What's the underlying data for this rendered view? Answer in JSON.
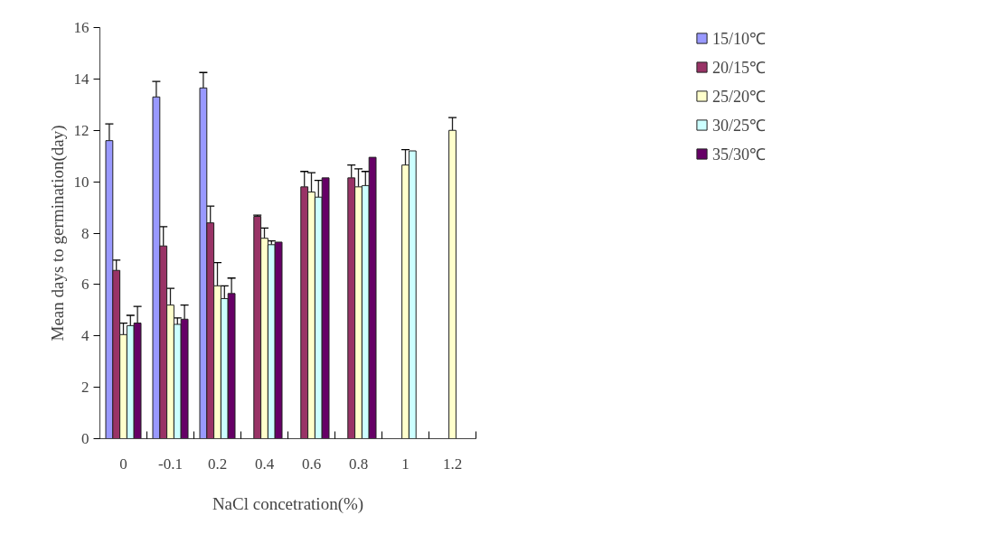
{
  "chart_data": {
    "type": "bar",
    "xlabel": "NaCl concetration(%)",
    "ylabel": "Mean days to germination(day)",
    "categories": [
      "0",
      "-0.1",
      "0.2",
      "0.4",
      "0.6",
      "0.8",
      "1",
      "1.2"
    ],
    "series": [
      {
        "name": "15/10℃",
        "color": "#9999ff",
        "values": [
          11.6,
          13.3,
          13.65,
          null,
          null,
          null,
          null,
          null
        ],
        "errors": [
          [
            11.6,
            12.25
          ],
          [
            13.3,
            13.9
          ],
          [
            13.65,
            14.25
          ],
          null,
          null,
          null,
          null,
          null
        ]
      },
      {
        "name": "20/15℃",
        "color": "#993366",
        "values": [
          6.55,
          7.5,
          8.4,
          8.65,
          9.8,
          10.15,
          null,
          null
        ],
        "errors": [
          [
            6.55,
            6.95
          ],
          [
            7.5,
            8.25
          ],
          [
            8.4,
            9.05
          ],
          [
            8.65,
            8.7
          ],
          [
            9.8,
            10.4
          ],
          [
            10.15,
            10.65
          ],
          null,
          null
        ]
      },
      {
        "name": "25/20℃",
        "color": "#ffffcc",
        "values": [
          4.05,
          5.2,
          5.95,
          7.8,
          9.6,
          9.8,
          10.65,
          12.0
        ],
        "errors": [
          [
            4.05,
            4.5
          ],
          [
            5.2,
            5.85
          ],
          [
            5.95,
            6.85
          ],
          [
            7.8,
            8.2
          ],
          [
            9.6,
            10.35
          ],
          [
            9.8,
            10.5
          ],
          [
            10.65,
            11.25
          ],
          [
            12.0,
            12.5
          ]
        ]
      },
      {
        "name": "30/25℃",
        "color": "#ccffff",
        "values": [
          4.4,
          4.45,
          5.45,
          7.55,
          9.4,
          9.85,
          11.2,
          null
        ],
        "errors": [
          [
            4.4,
            4.8
          ],
          [
            4.45,
            4.7
          ],
          [
            5.45,
            5.95
          ],
          [
            7.55,
            7.7
          ],
          [
            9.4,
            10.05
          ],
          [
            9.85,
            10.4
          ],
          null,
          null
        ]
      },
      {
        "name": "35/30℃",
        "color": "#660066",
        "values": [
          4.5,
          4.65,
          5.65,
          7.65,
          10.15,
          10.95,
          null,
          null
        ],
        "errors": [
          [
            4.5,
            5.15
          ],
          [
            4.65,
            5.2
          ],
          [
            5.65,
            6.25
          ],
          null,
          null,
          null,
          null,
          null
        ]
      }
    ],
    "ylim": [
      0,
      16
    ],
    "yticks": [
      0,
      2,
      4,
      6,
      8,
      10,
      12,
      14,
      16
    ],
    "grid": false,
    "legend": "top right"
  }
}
